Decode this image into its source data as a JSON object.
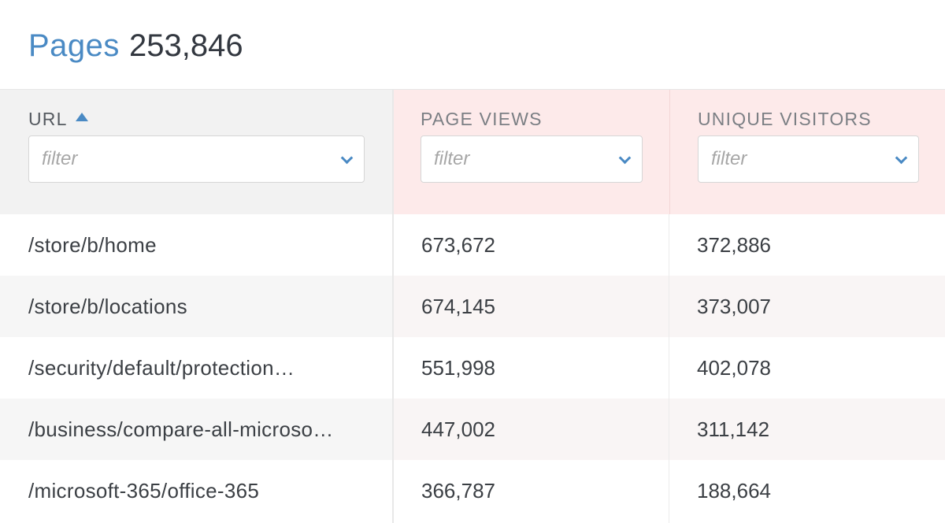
{
  "header": {
    "title": "Pages",
    "count": "253,846"
  },
  "columns": {
    "url": {
      "label": "URL",
      "sort": "ascending",
      "filter_placeholder": "filter"
    },
    "page_views": {
      "label": "PAGE VIEWS",
      "filter_placeholder": "filter"
    },
    "unique_visitors": {
      "label": "UNIQUE VISITORS",
      "filter_placeholder": "filter"
    }
  },
  "rows": [
    {
      "url": "/store/b/home",
      "page_views": "673,672",
      "unique_visitors": "372,886"
    },
    {
      "url": "/store/b/locations",
      "page_views": "674,145",
      "unique_visitors": "373,007"
    },
    {
      "url": "/security/default/protection…",
      "page_views": "551,998",
      "unique_visitors": "402,078"
    },
    {
      "url": "/business/compare-all-microso…",
      "page_views": "447,002",
      "unique_visitors": "311,142"
    },
    {
      "url": "/microsoft-365/office-365",
      "page_views": "366,787",
      "unique_visitors": "188,664"
    }
  ],
  "colors": {
    "accent": "#4a8ac4",
    "highlight_column_bg": "#fdeaea"
  },
  "icons": {
    "sort": "sort-ascending-icon",
    "dropdown": "chevron-down-icon"
  }
}
